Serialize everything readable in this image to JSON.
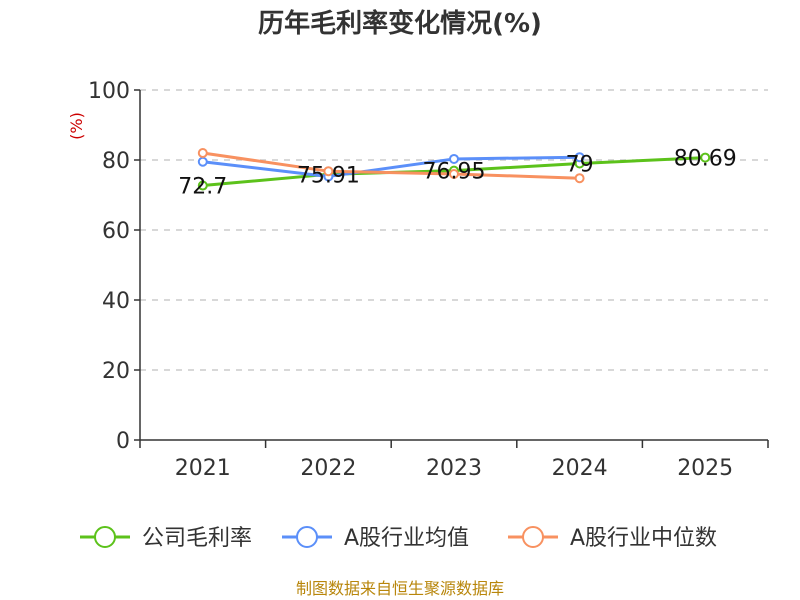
{
  "chart_data": {
    "type": "line",
    "title": "历年毛利率变化情况(%)",
    "ylabel": "(%)",
    "xlabel": "",
    "categories": [
      "2021",
      "2022",
      "2023",
      "2024",
      "2025"
    ],
    "ylim": [
      0,
      100
    ],
    "yticks": [
      0,
      20,
      40,
      60,
      80,
      100
    ],
    "grid": true,
    "legend_position": "bottom",
    "series": [
      {
        "name": "公司毛利率",
        "color": "#5cc21b",
        "values": [
          72.7,
          75.91,
          76.95,
          79,
          80.69
        ],
        "labels": [
          "72.7",
          "75.91",
          "76.95",
          "79",
          "80.69"
        ]
      },
      {
        "name": "A股行业均值",
        "color": "#5b8ff9",
        "values": [
          79.5,
          75.3,
          80.3,
          80.8,
          null
        ]
      },
      {
        "name": "A股行业中位数",
        "color": "#f89160",
        "values": [
          82.0,
          76.8,
          76.0,
          74.8,
          null
        ]
      }
    ]
  },
  "source": "制图数据来自恒生聚源数据库"
}
